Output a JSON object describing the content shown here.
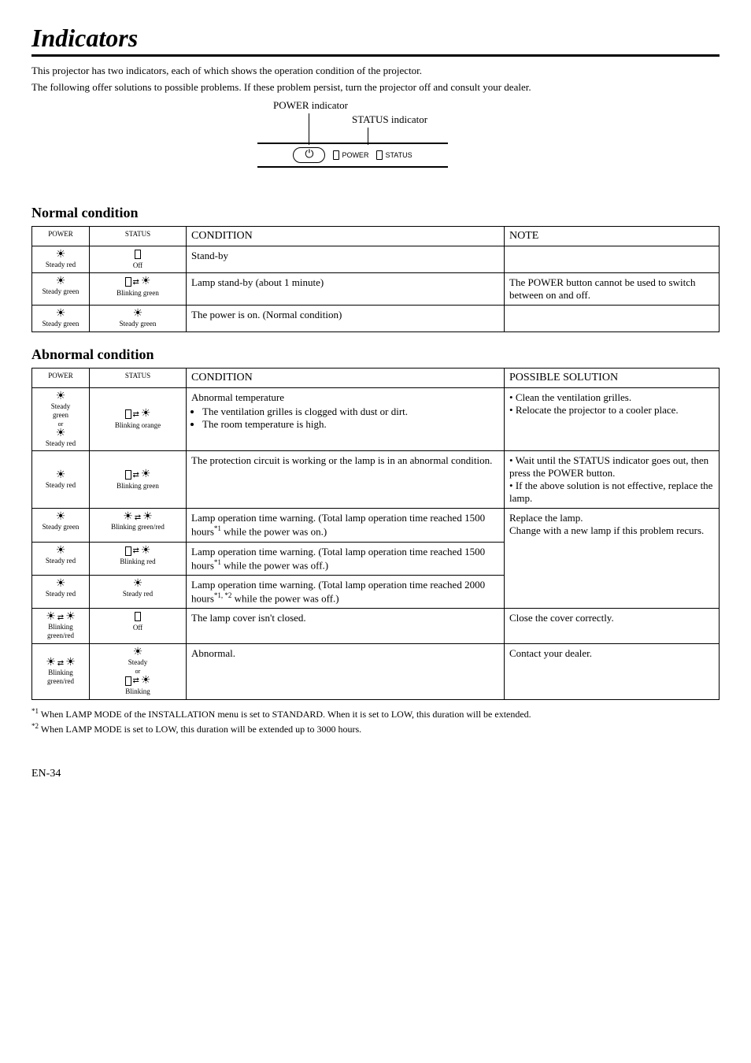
{
  "title": "Indicators",
  "intro1": "This projector has two indicators, each of which shows the operation condition of the projector.",
  "intro2": "The following offer solutions to possible problems. If these problem persist, turn the projector off and consult your dealer.",
  "diagram": {
    "power_indicator": "POWER indicator",
    "status_indicator": "STATUS indicator",
    "power_led": "POWER",
    "status_led": "STATUS",
    "power_symbol": "⏻"
  },
  "normal": {
    "heading": "Normal condition",
    "headers": {
      "power": "POWER",
      "status": "STATUS",
      "condition": "CONDITION",
      "note": "NOTE"
    },
    "rows": [
      {
        "power_label": "Steady red",
        "status_label": "Off",
        "status_icon": "rect",
        "condition": "Stand-by",
        "note": ""
      },
      {
        "power_label": "Steady green",
        "status_label": "Blinking green",
        "status_icon": "blink",
        "condition": "Lamp stand-by (about 1 minute)",
        "note": "The POWER button cannot be used to switch between on and off."
      },
      {
        "power_label": "Steady green",
        "status_label": "Steady green",
        "status_icon": "bulb",
        "condition": "The power is on. (Normal condition)",
        "note": ""
      }
    ]
  },
  "abnormal": {
    "heading": "Abnormal condition",
    "headers": {
      "power": "POWER",
      "status": "STATUS",
      "condition": "CONDITION",
      "solution": "POSSIBLE SOLUTION"
    },
    "rows": [
      {
        "power_html": "Steady green<br>or",
        "power_label2": "Steady red",
        "status_label": "Blinking orange",
        "condition_title": "Abnormal temperature",
        "condition_b1": "The ventilation grilles is clogged with dust or dirt.",
        "condition_b2": "The room temperature is high.",
        "solution_b1": "Clean the ventilation grilles.",
        "solution_b2": "Relocate the projector to a cooler place."
      },
      {
        "power_label": "Steady red",
        "status_label": "Blinking green",
        "condition": "The protection circuit is working or the lamp is in an abnormal condition.",
        "solution_b1": "Wait until the STATUS indicator goes out, then press the POWER button.",
        "solution_b2": "If the above solution is not effective, replace the lamp."
      },
      {
        "power_label": "Steady green",
        "status_label": "Blinking green/red",
        "condition_a": "Lamp operation time warning. (Total lamp operation time reached 1500 hours",
        "condition_sup": "*1",
        "condition_b": " while the power was on.)",
        "solution_l1": "Replace the lamp.",
        "solution_l2": "Change with a new lamp if this problem recurs."
      },
      {
        "power_label": "Steady red",
        "status_label": "Blinking red",
        "condition_a": "Lamp operation time warning. (Total lamp operation time reached 1500 hours",
        "condition_sup": "*1",
        "condition_b": " while the power was off.)"
      },
      {
        "power_label": "Steady red",
        "status_label": "Steady red",
        "condition_a": "Lamp operation time warning. (Total lamp operation time reached 2000 hours",
        "condition_sup": "*1, *2",
        "condition_b": " while the power was off.)"
      },
      {
        "power_label": "Blinking green/red",
        "status_label": "Off",
        "condition": "The lamp cover isn't closed.",
        "solution": "Close the cover correctly."
      },
      {
        "power_label": "Blinking green/red",
        "status_label1": "Steady",
        "status_or": "or",
        "status_label2": "Blinking",
        "condition": "Abnormal.",
        "solution": "Contact your dealer."
      }
    ]
  },
  "footnotes": {
    "f1a": "*1",
    "f1b": " When LAMP MODE of the INSTALLATION menu is set to STANDARD. When it is set to LOW, this duration will be extended.",
    "f2a": "*2",
    "f2b": " When LAMP MODE is set to LOW, this duration will be extended up to 3000 hours."
  },
  "pagenum": "EN-34"
}
